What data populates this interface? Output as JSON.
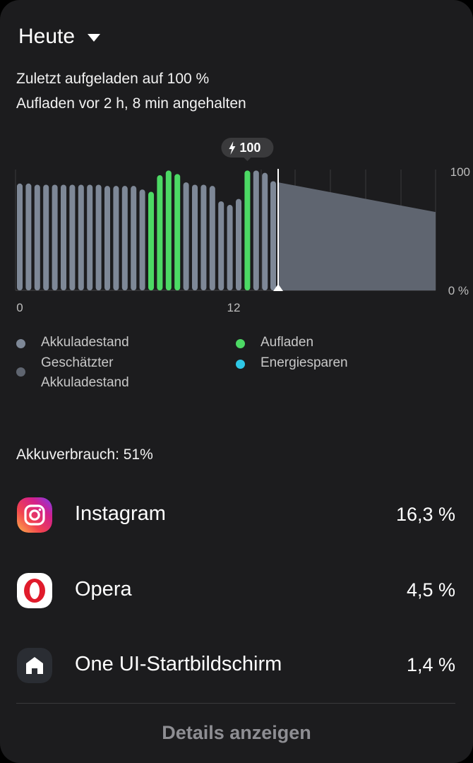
{
  "header": {
    "period": "Heute"
  },
  "status": {
    "last_charged": "Zuletzt aufgeladen auf 100 %",
    "charge_stopped": "Aufladen vor 2 h, 8 min angehalten"
  },
  "colors": {
    "battery_level": "#7e8897",
    "estimated": "#5f6570",
    "charging": "#4cd964",
    "power_saving": "#2ec7e6",
    "background": "#1c1c1e"
  },
  "chart_data": {
    "type": "bar",
    "y_axis_right": {
      "max_label": "100",
      "min_label": "0 %"
    },
    "x_tick_labels": [
      {
        "hour": 0,
        "label": "0"
      },
      {
        "hour": 12,
        "label": "12"
      }
    ],
    "marker_label": "100",
    "marker_icon": "lightning-bolt-icon",
    "bars": [
      {
        "level": 90,
        "state": "level"
      },
      {
        "level": 90,
        "state": "level"
      },
      {
        "level": 89,
        "state": "level"
      },
      {
        "level": 89,
        "state": "level"
      },
      {
        "level": 89,
        "state": "level"
      },
      {
        "level": 89,
        "state": "level"
      },
      {
        "level": 89,
        "state": "level"
      },
      {
        "level": 89,
        "state": "level"
      },
      {
        "level": 89,
        "state": "level"
      },
      {
        "level": 89,
        "state": "level"
      },
      {
        "level": 88,
        "state": "level"
      },
      {
        "level": 88,
        "state": "level"
      },
      {
        "level": 88,
        "state": "level"
      },
      {
        "level": 88,
        "state": "level"
      },
      {
        "level": 85,
        "state": "level"
      },
      {
        "level": 83,
        "state": "charging"
      },
      {
        "level": 97,
        "state": "charging"
      },
      {
        "level": 101,
        "state": "charging"
      },
      {
        "level": 98,
        "state": "charging"
      },
      {
        "level": 91,
        "state": "level"
      },
      {
        "level": 89,
        "state": "level"
      },
      {
        "level": 89,
        "state": "level"
      },
      {
        "level": 88,
        "state": "level"
      },
      {
        "level": 75,
        "state": "level"
      },
      {
        "level": 72,
        "state": "level"
      },
      {
        "level": 77,
        "state": "level"
      },
      {
        "level": 101,
        "state": "charging"
      },
      {
        "level": 101,
        "state": "level"
      },
      {
        "level": 99,
        "state": "level"
      }
    ],
    "current_bar": 92,
    "estimate": {
      "start_level": 91,
      "end_level": 66
    }
  },
  "legend": {
    "level": "Akkuladestand",
    "estimated": "Geschätzter Akkuladestand",
    "charging": "Aufladen",
    "power_saving": "Energiesparen"
  },
  "usage": {
    "title": "Akkuverbrauch: 51%",
    "apps": [
      {
        "name": "Instagram",
        "percent": "16,3 %",
        "icon": "instagram-icon"
      },
      {
        "name": "Opera",
        "percent": "4,5 %",
        "icon": "opera-icon"
      },
      {
        "name": "One UI-Startbildschirm",
        "percent": "1,4 %",
        "icon": "home-icon"
      }
    ]
  },
  "details_button": "Details anzeigen"
}
